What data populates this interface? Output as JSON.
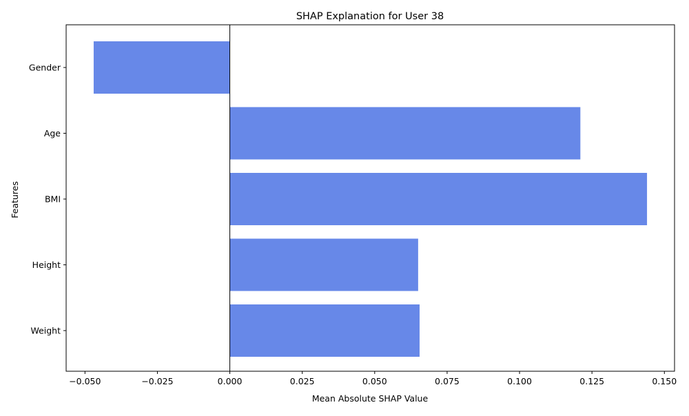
{
  "chart_data": {
    "type": "bar",
    "orientation": "horizontal",
    "title": "SHAP Explanation for User 38",
    "xlabel": "Mean Absolute SHAP Value",
    "ylabel": "Features",
    "categories": [
      "Gender",
      "Age",
      "BMI",
      "Height",
      "Weight"
    ],
    "values": [
      -0.047,
      0.121,
      0.144,
      0.065,
      0.0655
    ],
    "xlim": [
      -0.0565,
      0.1535
    ],
    "xticks": [
      -0.05,
      -0.025,
      0.0,
      0.025,
      0.05,
      0.075,
      0.1,
      0.125,
      0.15
    ],
    "xtick_labels": [
      "−0.050",
      "−0.025",
      "0.000",
      "0.025",
      "0.050",
      "0.075",
      "0.100",
      "0.125",
      "0.150"
    ],
    "zero_line": true,
    "grid": false,
    "bar_color": "#6788e8"
  }
}
